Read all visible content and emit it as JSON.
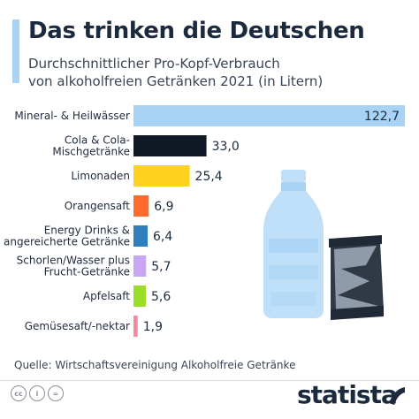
{
  "header": {
    "title": "Das trinken die Deutschen",
    "subtitle_line1": "Durchschnittlicher Pro-Kopf-Verbrauch",
    "subtitle_line2": "von alkoholfreien Getränken 2021 (in Litern)"
  },
  "footer": {
    "source": "Quelle: Wirtschaftsvereinigung Alkoholfreie Getränke",
    "brand": "statista",
    "license_icons": [
      "cc",
      "i",
      "="
    ]
  },
  "illustration": {
    "icons": [
      "water-bottle-icon",
      "crushed-can-icon"
    ]
  },
  "chart_data": {
    "type": "bar",
    "orientation": "horizontal",
    "categories": [
      [
        "Mineral- & Heilwässer"
      ],
      [
        "Cola & Cola-",
        "Mischgetränke"
      ],
      [
        "Limonaden"
      ],
      [
        "Orangensaft"
      ],
      [
        "Energy Drinks &",
        "angereicherte Getränke"
      ],
      [
        "Schorlen/Wasser plus",
        "Frucht-Getränke"
      ],
      [
        "Apfelsaft"
      ],
      [
        "Gemüsesaft/-nektar"
      ]
    ],
    "values": [
      122.7,
      33.0,
      25.4,
      6.9,
      6.4,
      5.7,
      5.6,
      1.9
    ],
    "value_labels": [
      "122,7",
      "33,0",
      "25,4",
      "6,9",
      "6,4",
      "5,7",
      "5,6",
      "1,9"
    ],
    "colors": [
      "#a9d3f5",
      "#0f1a26",
      "#ffd21f",
      "#ff6b2c",
      "#2f7fbf",
      "#c9a6f2",
      "#9bde2a",
      "#f28ba0"
    ],
    "xlim": [
      0,
      122.7
    ],
    "grid": false,
    "legend": "none"
  }
}
